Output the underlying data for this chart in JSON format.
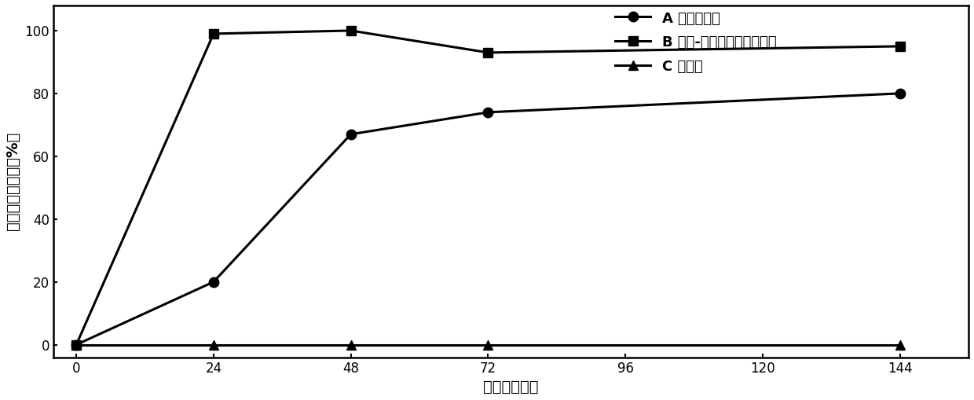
{
  "series_A_points": [
    0,
    24,
    48,
    72,
    144
  ],
  "series_A_values": [
    0,
    20,
    67,
    74,
    80
  ],
  "series_B_points": [
    0,
    24,
    48,
    72,
    144
  ],
  "series_B_values": [
    0,
    99,
    100,
    93,
    95
  ],
  "series_C_points": [
    0,
    24,
    48,
    72,
    144
  ],
  "series_C_values": [
    0,
    0,
    0,
    0,
    0
  ],
  "xlabel": "时间（小时）",
  "ylabel": "平均幼虫减少率（%）",
  "legend_A": "A 伊维菌素组",
  "legend_B": "B 真菌-伊维菌素合剂胶囊组",
  "legend_C": "C 对照组",
  "color": "#000000",
  "marker_A": "o",
  "marker_B": "s",
  "marker_C": "^",
  "xlim": [
    -4,
    156
  ],
  "ylim": [
    -4,
    108
  ],
  "xticks": [
    0,
    24,
    48,
    72,
    96,
    120,
    144
  ],
  "yticks": [
    0,
    20,
    40,
    60,
    80,
    100
  ],
  "linewidth": 2.2,
  "markersize": 9,
  "label_fontsize": 14,
  "tick_fontsize": 12,
  "legend_fontsize": 13
}
